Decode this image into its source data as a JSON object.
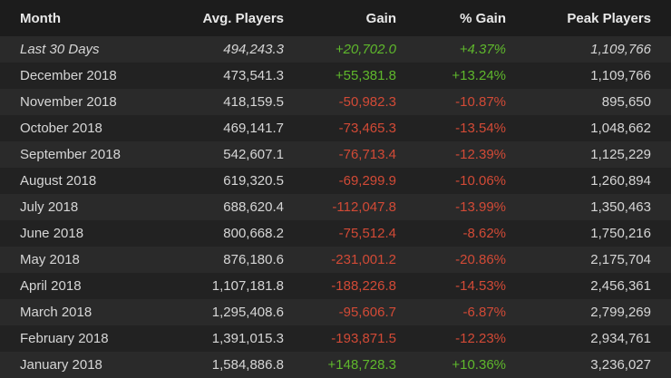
{
  "table": {
    "columns": [
      "Month",
      "Avg. Players",
      "Gain",
      "% Gain",
      "Peak Players"
    ],
    "rows": [
      [
        "Last 30 Days",
        "494,243.3",
        "+20,702.0",
        "+4.37%",
        "1,109,766"
      ],
      [
        "December 2018",
        "473,541.3",
        "+55,381.8",
        "+13.24%",
        "1,109,766"
      ],
      [
        "November 2018",
        "418,159.5",
        "-50,982.3",
        "-10.87%",
        "895,650"
      ],
      [
        "October 2018",
        "469,141.7",
        "-73,465.3",
        "-13.54%",
        "1,048,662"
      ],
      [
        "September 2018",
        "542,607.1",
        "-76,713.4",
        "-12.39%",
        "1,125,229"
      ],
      [
        "August 2018",
        "619,320.5",
        "-69,299.9",
        "-10.06%",
        "1,260,894"
      ],
      [
        "July 2018",
        "688,620.4",
        "-112,047.8",
        "-13.99%",
        "1,350,463"
      ],
      [
        "June 2018",
        "800,668.2",
        "-75,512.4",
        "-8.62%",
        "1,750,216"
      ],
      [
        "May 2018",
        "876,180.6",
        "-231,001.2",
        "-20.86%",
        "2,175,704"
      ],
      [
        "April 2018",
        "1,107,181.8",
        "-188,226.8",
        "-14.53%",
        "2,456,361"
      ],
      [
        "March 2018",
        "1,295,408.6",
        "-95,606.7",
        "-6.87%",
        "2,799,269"
      ],
      [
        "February 2018",
        "1,391,015.3",
        "-193,871.5",
        "-12.23%",
        "2,934,761"
      ],
      [
        "January 2018",
        "1,584,886.8",
        "+148,728.3",
        "+10.36%",
        "3,236,027"
      ]
    ]
  }
}
